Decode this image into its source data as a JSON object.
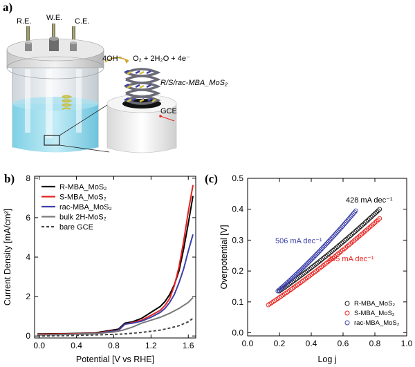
{
  "figure": {
    "panel_labels": [
      "a)",
      "b)",
      "(c)"
    ],
    "panel_a": {
      "electrodes": [
        "R.E.",
        "W.E.",
        "C.E."
      ],
      "reaction_left": "4OH⁻",
      "reaction_right": "O₂ + 2H₂O + 4e⁻",
      "catalyst_label": "R/S/rac-MBA_MoS₂",
      "electrode_label": "GCE"
    }
  },
  "chart_data": [
    {
      "type": "line",
      "panel": "b",
      "xlabel": "Potential [V vs RHE]",
      "ylabel": "Current Density [mA/cm²]",
      "xlim": [
        -0.05,
        1.68
      ],
      "ylim": [
        -0.1,
        8.1
      ],
      "xticks": [
        "0.0",
        "0.4",
        "0.8",
        "1.2",
        "1.6"
      ],
      "yticks": [
        "0",
        "2",
        "4",
        "6",
        "8"
      ],
      "legend_position": "top-left",
      "grid": false,
      "series": [
        {
          "name": "R-MBA_MoS₂",
          "color": "#000000",
          "dash": "solid",
          "x": [
            -0.02,
            0.3,
            0.6,
            0.85,
            0.92,
            1.0,
            1.1,
            1.2,
            1.3,
            1.35,
            1.4,
            1.45,
            1.5,
            1.55,
            1.6,
            1.65
          ],
          "y": [
            0.1,
            0.12,
            0.16,
            0.35,
            0.65,
            0.72,
            0.9,
            1.2,
            1.5,
            1.75,
            2.1,
            2.6,
            3.3,
            4.4,
            5.7,
            7.1
          ]
        },
        {
          "name": "S-MBA_MoS₂",
          "color": "#e8201c",
          "dash": "solid",
          "x": [
            -0.02,
            0.3,
            0.6,
            0.85,
            0.92,
            1.0,
            1.1,
            1.2,
            1.3,
            1.35,
            1.4,
            1.45,
            1.5,
            1.55,
            1.6,
            1.65
          ],
          "y": [
            0.08,
            0.1,
            0.14,
            0.3,
            0.6,
            0.68,
            0.8,
            1.05,
            1.3,
            1.55,
            1.9,
            2.55,
            3.5,
            4.8,
            6.3,
            7.65
          ]
        },
        {
          "name": "rac-MBA_MoS₂",
          "color": "#3a3fa8",
          "dash": "solid",
          "x": [
            -0.02,
            0.3,
            0.6,
            0.85,
            0.92,
            1.0,
            1.1,
            1.2,
            1.3,
            1.35,
            1.4,
            1.45,
            1.5,
            1.55,
            1.6,
            1.65
          ],
          "y": [
            0.05,
            0.08,
            0.12,
            0.28,
            0.6,
            0.65,
            0.75,
            0.95,
            1.2,
            1.4,
            1.7,
            2.1,
            2.7,
            3.4,
            4.3,
            5.15
          ]
        },
        {
          "name": "bulk 2H-MoS₂",
          "color": "#7a7a7a",
          "dash": "solid",
          "x": [
            -0.02,
            0.3,
            0.6,
            0.8,
            0.9,
            1.0,
            1.1,
            1.2,
            1.3,
            1.4,
            1.5,
            1.6,
            1.65
          ],
          "y": [
            0.05,
            0.08,
            0.12,
            0.2,
            0.3,
            0.45,
            0.65,
            0.8,
            0.95,
            1.15,
            1.4,
            1.7,
            1.95
          ]
        },
        {
          "name": "bare GCE",
          "color": "#444444",
          "dash": "dashed",
          "x": [
            -0.02,
            0.3,
            0.6,
            0.9,
            1.1,
            1.3,
            1.4,
            1.5,
            1.6,
            1.65
          ],
          "y": [
            0.0,
            0.02,
            0.05,
            0.1,
            0.18,
            0.3,
            0.4,
            0.52,
            0.72,
            0.9
          ]
        }
      ]
    },
    {
      "type": "scatter",
      "panel": "c",
      "xlabel": "Log j",
      "ylabel": "Overpotential [V]",
      "xlim": [
        0.0,
        1.0
      ],
      "ylim": [
        -0.01,
        0.5
      ],
      "xticks": [
        "0.0",
        "0.2",
        "0.4",
        "0.6",
        "0.8",
        "1.0"
      ],
      "yticks": [
        "0.0",
        "0.1",
        "0.2",
        "0.3",
        "0.4",
        "0.5"
      ],
      "legend_position": "bottom-right",
      "grid": false,
      "series": [
        {
          "name": "R-MBA_MoS₂",
          "color": "#1a1a1a",
          "x_start": 0.2,
          "x_end": 0.83,
          "y_start": 0.135,
          "y_end": 0.4
        },
        {
          "name": "S-MBA_MoS₂",
          "color": "#e8201c",
          "x_start": 0.13,
          "x_end": 0.83,
          "y_start": 0.09,
          "y_end": 0.37
        },
        {
          "name": "rac-MBA_MoS₂",
          "color": "#3a3fa8",
          "x_start": 0.19,
          "x_end": 0.68,
          "y_start": 0.135,
          "y_end": 0.395
        }
      ],
      "annotations": [
        {
          "text": "428 mA dec⁻¹",
          "color": "#000000"
        },
        {
          "text": "506 mA dec⁻¹",
          "color": "#3a3fa8"
        },
        {
          "text": "395 mA dec⁻¹",
          "color": "#e8201c"
        }
      ]
    }
  ]
}
